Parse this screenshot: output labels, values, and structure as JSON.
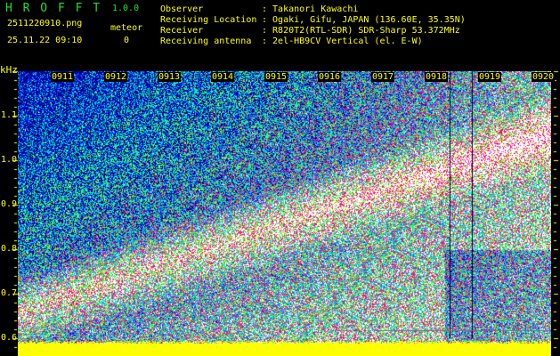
{
  "header": {
    "app_name": "H R O F F T",
    "version": "1.0.0",
    "filename": "2511220910.png",
    "datetime": "25.11.22 09:10",
    "meteor_label": "meteor",
    "meteor_count": "0"
  },
  "info": [
    {
      "label": "Observer",
      "value": ": Takanori Kawachi"
    },
    {
      "label": "Receiving Location",
      "value": ": Ogaki, Gifu, JAPAN (136.60E, 35.35N)"
    },
    {
      "label": "Receiver",
      "value": ": R820T2(RTL-SDR) SDR-Sharp 53.372MHz"
    },
    {
      "label": "Receiving antenna",
      "value": ": 2el-HB9CV Vertical (el. E-W)"
    }
  ],
  "spectrogram": {
    "y_unit": "kHz",
    "y_ticks": [
      "1.1",
      "1.0",
      "0.9",
      "0.8",
      "0.7",
      "0.6"
    ],
    "time_labels": [
      "0911",
      "0912",
      "0913",
      "0914",
      "0915",
      "0916",
      "0917",
      "0918",
      "0919",
      "0920"
    ],
    "palette": [
      "#000080",
      "#0000ff",
      "#0080ff",
      "#00ffff",
      "#00ff80",
      "#80ff00",
      "#ffff00",
      "#ff0080",
      "#ff0040",
      "#ffffff"
    ],
    "baseline_color": "#ffff00"
  }
}
